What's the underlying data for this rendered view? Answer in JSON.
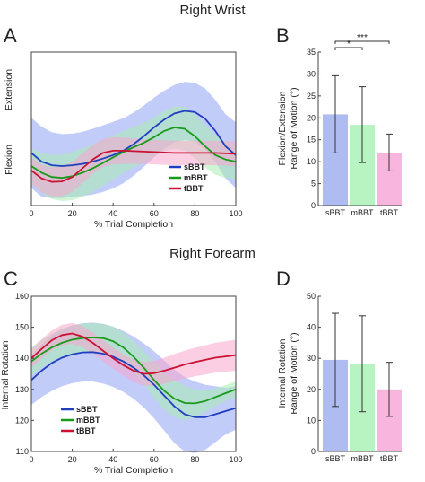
{
  "section_titles": [
    "Right Wrist",
    "Right Forearm"
  ],
  "chart_data": [
    {
      "panel": "A",
      "type": "line",
      "xlabel": "% Trial Completion",
      "ylabel_top": "Extension",
      "ylabel_bottom": "Flexion",
      "xlim": [
        0,
        100
      ],
      "ylim": [
        -15,
        20
      ],
      "xticks": [
        0,
        20,
        40,
        60,
        80,
        100
      ],
      "legend_position": "bottom-right",
      "series": [
        {
          "name": "sBBT",
          "color": "#1f3fbf",
          "band_color": "#8fa3f4",
          "x": [
            0,
            5,
            10,
            15,
            20,
            25,
            30,
            35,
            40,
            45,
            50,
            55,
            60,
            65,
            70,
            75,
            80,
            85,
            90,
            95,
            100
          ],
          "mean": [
            -3,
            -5,
            -5.8,
            -6,
            -5.8,
            -5.5,
            -5,
            -4.3,
            -3.5,
            -2.5,
            -1,
            0.8,
            2.8,
            4.6,
            6,
            6.6,
            6.3,
            4.8,
            2,
            -1.5,
            -3.5
          ],
          "sd": [
            8,
            8,
            7.5,
            7.3,
            7.2,
            7.3,
            7.5,
            7.6,
            7.6,
            7.4,
            7.2,
            7,
            6.8,
            6.6,
            6.5,
            6.6,
            6.7,
            6.9,
            7.1,
            7.3,
            7.5
          ]
        },
        {
          "name": "mBBT",
          "color": "#1a9a1a",
          "band_color": "#a9ecb0",
          "x": [
            0,
            5,
            10,
            15,
            20,
            25,
            30,
            35,
            40,
            45,
            50,
            55,
            60,
            65,
            70,
            75,
            80,
            85,
            90,
            95,
            100
          ],
          "mean": [
            -6,
            -7.5,
            -8.5,
            -8.7,
            -8.3,
            -7.5,
            -6.5,
            -5.3,
            -4,
            -2.8,
            -1.7,
            -0.7,
            0.6,
            2,
            2.8,
            2.5,
            0.8,
            -1.5,
            -3.5,
            -4.5,
            -5
          ],
          "sd": [
            4,
            4.5,
            5,
            5.3,
            5.5,
            5.5,
            5.4,
            5.2,
            5,
            4.8,
            4.6,
            4.5,
            4.5,
            4.6,
            4.8,
            5,
            5,
            4.8,
            4.5,
            4.2,
            4
          ]
        },
        {
          "name": "tBBT",
          "color": "#cc1133",
          "band_color": "#f7a6ce",
          "x": [
            0,
            5,
            10,
            15,
            20,
            25,
            30,
            35,
            40,
            45,
            50,
            55,
            60,
            65,
            70,
            75,
            80,
            85,
            90,
            95,
            100
          ],
          "mean": [
            -7,
            -8.8,
            -9.6,
            -9.5,
            -8.5,
            -6.5,
            -4.5,
            -3,
            -2.5,
            -2.5,
            -2.6,
            -2.7,
            -2.8,
            -2.9,
            -3,
            -3,
            -3,
            -3,
            -3,
            -3.1,
            -3.2
          ],
          "sd": [
            3,
            3.2,
            3.3,
            3.4,
            3.4,
            3.4,
            3.3,
            3.2,
            3.1,
            3,
            2.9,
            2.8,
            2.8,
            2.8,
            2.8,
            2.8,
            2.8,
            2.8,
            2.8,
            2.8,
            2.8
          ]
        }
      ]
    },
    {
      "panel": "B",
      "type": "bar",
      "ylabel": [
        "Flexion/Extension",
        "Range of Motion (°)"
      ],
      "ylim": [
        0,
        35
      ],
      "yticks": [
        0,
        5,
        10,
        15,
        20,
        25,
        30,
        35
      ],
      "categories": [
        "sBBT",
        "mBBT",
        "tBBT"
      ],
      "values": [
        20.8,
        18.4,
        12.0
      ],
      "error_low": [
        12.0,
        9.8,
        7.9
      ],
      "error_high": [
        29.6,
        27.1,
        16.3
      ],
      "colors": [
        "#aebcf2",
        "#b8f3c2",
        "#f8b6de"
      ],
      "significance": [
        {
          "from": "sBBT",
          "to": "mBBT",
          "label": "*"
        },
        {
          "from": "sBBT",
          "to": "tBBT",
          "label": "***"
        }
      ]
    },
    {
      "panel": "C",
      "type": "line",
      "xlabel": "% Trial Completion",
      "ylabel": "Internal Rotation",
      "xlim": [
        0,
        100
      ],
      "ylim": [
        110,
        160
      ],
      "xticks": [
        0,
        20,
        40,
        60,
        80,
        100
      ],
      "yticks": [
        110,
        120,
        130,
        140,
        150,
        160
      ],
      "legend_position": "bottom-left",
      "series": [
        {
          "name": "sBBT",
          "color": "#1f3fbf",
          "band_color": "#8fa3f4",
          "x": [
            0,
            5,
            10,
            15,
            20,
            25,
            30,
            35,
            40,
            45,
            50,
            55,
            60,
            65,
            70,
            75,
            80,
            85,
            90,
            95,
            100
          ],
          "mean": [
            133,
            136,
            138.5,
            140.2,
            141.3,
            141.9,
            142,
            141.5,
            140.5,
            139,
            137,
            134.5,
            131.5,
            128,
            124.5,
            122,
            121,
            121,
            122,
            123,
            124
          ],
          "sd": [
            8,
            8.5,
            9,
            9.2,
            9.3,
            9.4,
            9.5,
            9.6,
            9.7,
            9.8,
            10,
            10.3,
            10.8,
            11.3,
            11.8,
            12,
            11.5,
            10.5,
            9,
            7.5,
            7
          ]
        },
        {
          "name": "mBBT",
          "color": "#1a9a1a",
          "band_color": "#a9ecb0",
          "x": [
            0,
            5,
            10,
            15,
            20,
            25,
            30,
            35,
            40,
            45,
            50,
            55,
            60,
            65,
            70,
            75,
            80,
            85,
            90,
            95,
            100
          ],
          "mean": [
            139,
            141.5,
            143.5,
            145,
            146,
            146.5,
            146.7,
            146.5,
            145.5,
            143.5,
            140.5,
            137,
            133,
            129.5,
            127,
            125.6,
            125.5,
            126.2,
            127.5,
            128.8,
            130
          ],
          "sd": [
            4.5,
            4.5,
            4.5,
            4.5,
            4.6,
            4.6,
            4.6,
            4.6,
            4.7,
            4.8,
            5,
            5.3,
            5.7,
            6,
            6,
            5.5,
            4.5,
            3.5,
            2.8,
            2.6,
            2.5
          ]
        },
        {
          "name": "tBBT",
          "color": "#cc1133",
          "band_color": "#f7a6ce",
          "x": [
            0,
            5,
            10,
            15,
            20,
            25,
            30,
            35,
            40,
            45,
            50,
            55,
            60,
            65,
            70,
            75,
            80,
            85,
            90,
            95,
            100
          ],
          "mean": [
            140,
            143,
            145.8,
            147.5,
            148,
            147,
            145,
            142.5,
            140,
            137.8,
            136,
            135,
            135.2,
            136,
            137,
            138,
            138.8,
            139.5,
            140.2,
            140.6,
            141
          ],
          "sd": [
            3,
            3.1,
            3.2,
            3.3,
            3.4,
            3.4,
            3.4,
            3.4,
            3.4,
            3.5,
            3.6,
            3.8,
            4,
            4.2,
            4.4,
            4.5,
            4.6,
            4.7,
            4.8,
            4.9,
            5
          ]
        }
      ]
    },
    {
      "panel": "D",
      "type": "bar",
      "ylabel": [
        "Internal Rotation",
        "Range of Motion (°)"
      ],
      "ylim": [
        0,
        50
      ],
      "yticks": [
        0,
        10,
        20,
        30,
        40,
        50
      ],
      "categories": [
        "sBBT",
        "mBBT",
        "tBBT"
      ],
      "values": [
        29.5,
        28.3,
        20.0
      ],
      "error_low": [
        14.5,
        12.8,
        11.3
      ],
      "error_high": [
        44.5,
        43.7,
        28.7
      ],
      "colors": [
        "#aebcf2",
        "#b8f3c2",
        "#f8b6de"
      ]
    }
  ]
}
